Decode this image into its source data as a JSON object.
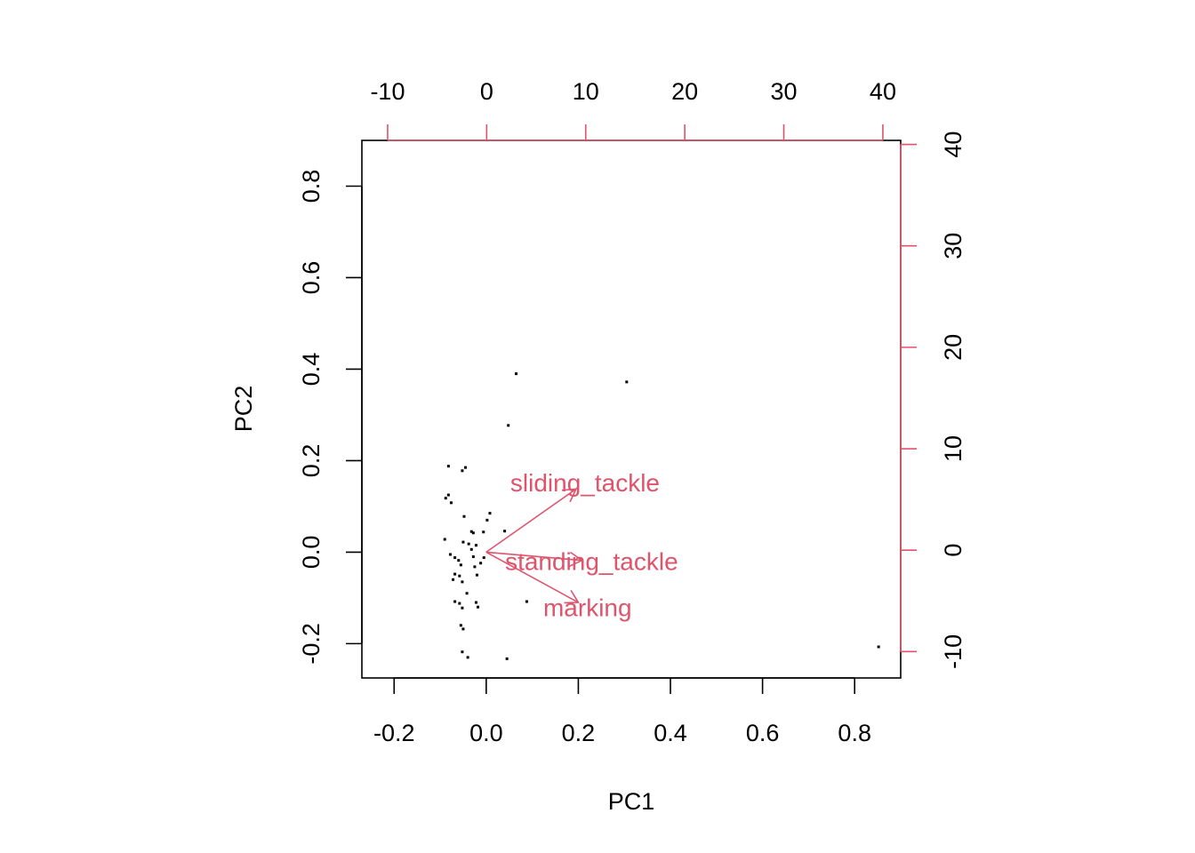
{
  "chart_data": {
    "type": "scatter",
    "subtype": "biplot",
    "xlabel": "PC1",
    "ylabel": "PC2",
    "xlim": [
      -0.27,
      0.9
    ],
    "ylim": [
      -0.275,
      0.9
    ],
    "x_ticks": [
      "-0.2",
      "0.0",
      "0.2",
      "0.4",
      "0.6",
      "0.8"
    ],
    "y_ticks": [
      "-0.2",
      "0.0",
      "0.2",
      "0.4",
      "0.6",
      "0.8"
    ],
    "top_axis": {
      "lim": [
        -12.6,
        41.8
      ],
      "ticks": [
        "-10",
        "0",
        "10",
        "20",
        "30",
        "40"
      ]
    },
    "right_axis": {
      "lim": [
        -12.6,
        40.4
      ],
      "ticks": [
        "-10",
        "0",
        "10",
        "20",
        "30",
        "40"
      ]
    },
    "accent_color": "#DF536B",
    "point_color": "#000000",
    "grid": false,
    "points": [
      {
        "x": 0.065,
        "y": 0.39
      },
      {
        "x": 0.305,
        "y": 0.372
      },
      {
        "x": 0.048,
        "y": 0.277
      },
      {
        "x": -0.082,
        "y": 0.188
      },
      {
        "x": -0.045,
        "y": 0.185
      },
      {
        "x": -0.052,
        "y": 0.178
      },
      {
        "x": -0.088,
        "y": 0.118
      },
      {
        "x": -0.082,
        "y": 0.125
      },
      {
        "x": -0.076,
        "y": 0.108
      },
      {
        "x": 0.008,
        "y": 0.085
      },
      {
        "x": -0.048,
        "y": 0.078
      },
      {
        "x": 0.002,
        "y": 0.07
      },
      {
        "x": -0.032,
        "y": 0.045
      },
      {
        "x": -0.028,
        "y": 0.042
      },
      {
        "x": -0.006,
        "y": 0.044
      },
      {
        "x": 0.04,
        "y": 0.046
      },
      {
        "x": -0.09,
        "y": 0.028
      },
      {
        "x": -0.05,
        "y": 0.022
      },
      {
        "x": -0.038,
        "y": 0.018
      },
      {
        "x": -0.022,
        "y": 0.015
      },
      {
        "x": -0.032,
        "y": 0.006
      },
      {
        "x": -0.078,
        "y": -0.005
      },
      {
        "x": -0.068,
        "y": -0.012
      },
      {
        "x": -0.06,
        "y": -0.018
      },
      {
        "x": -0.028,
        "y": -0.01
      },
      {
        "x": -0.005,
        "y": -0.012
      },
      {
        "x": -0.012,
        "y": -0.024
      },
      {
        "x": -0.055,
        "y": -0.028
      },
      {
        "x": -0.025,
        "y": -0.032
      },
      {
        "x": -0.068,
        "y": -0.048
      },
      {
        "x": -0.058,
        "y": -0.052
      },
      {
        "x": -0.02,
        "y": -0.05
      },
      {
        "x": -0.072,
        "y": -0.06
      },
      {
        "x": -0.052,
        "y": -0.065
      },
      {
        "x": -0.042,
        "y": -0.09
      },
      {
        "x": -0.068,
        "y": -0.108
      },
      {
        "x": -0.058,
        "y": -0.112
      },
      {
        "x": -0.022,
        "y": -0.11
      },
      {
        "x": 0.088,
        "y": -0.108
      },
      {
        "x": -0.052,
        "y": -0.122
      },
      {
        "x": -0.018,
        "y": -0.12
      },
      {
        "x": -0.055,
        "y": -0.16
      },
      {
        "x": -0.05,
        "y": -0.168
      },
      {
        "x": -0.052,
        "y": -0.218
      },
      {
        "x": -0.04,
        "y": -0.23
      },
      {
        "x": 0.045,
        "y": -0.233
      },
      {
        "x": 0.852,
        "y": -0.207
      }
    ],
    "loadings": [
      {
        "name": "sliding_tackle",
        "x": 0.195,
        "y": 0.138
      },
      {
        "name": "standing_tackle",
        "x": 0.208,
        "y": -0.018
      },
      {
        "name": "marking",
        "x": 0.2,
        "y": -0.11
      }
    ]
  }
}
